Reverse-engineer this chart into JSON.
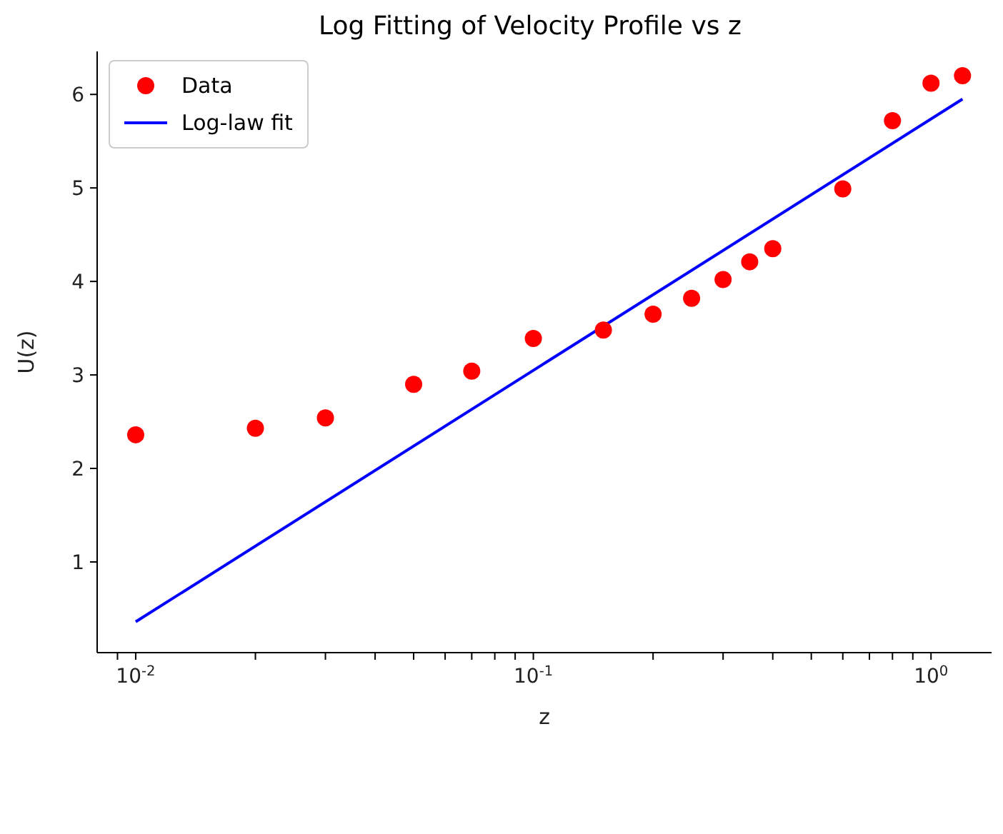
{
  "chart_data": {
    "type": "scatter",
    "title": "Log Fitting of Velocity Profile vs z",
    "xlabel": "z",
    "ylabel": "U(z)",
    "log": "x",
    "legend": "top left",
    "grid": false,
    "marker": "circle",
    "x": [
      0.01,
      0.02,
      0.03,
      0.05,
      0.07,
      0.1,
      0.15,
      0.2,
      0.25,
      0.3,
      0.35,
      0.4,
      0.6,
      0.8,
      1.0,
      1.2
    ],
    "series": [
      {
        "name": "Data",
        "color": "#ff0000",
        "values": [
          2.36,
          2.43,
          2.54,
          2.9,
          3.04,
          3.39,
          3.48,
          3.65,
          3.82,
          4.02,
          4.21,
          4.35,
          4.99,
          5.72,
          6.12,
          6.2
        ]
      },
      {
        "name": "Log-law fit",
        "type": "line",
        "color": "#0000ff",
        "marker": "none",
        "line_style": "solid",
        "x": [
          0.01,
          1.2
        ],
        "values": [
          0.36,
          5.95
        ]
      }
    ],
    "xlim": [
      0.008,
      1.42
    ],
    "ylim": [
      0.03,
      6.46
    ],
    "xticks": [
      {
        "value": 0.009,
        "label": null
      },
      {
        "value": 0.01,
        "label": "10$^{-2}$"
      },
      {
        "value": 0.02,
        "label": null
      },
      {
        "value": 0.03,
        "label": null
      },
      {
        "value": 0.04,
        "label": null
      },
      {
        "value": 0.05,
        "label": null
      },
      {
        "value": 0.06,
        "label": null
      },
      {
        "value": 0.07,
        "label": null
      },
      {
        "value": 0.08,
        "label": null
      },
      {
        "value": 0.09,
        "label": null
      },
      {
        "value": 0.1,
        "label": "10$^{-1}$"
      },
      {
        "value": 0.2,
        "label": null
      },
      {
        "value": 0.3,
        "label": null
      },
      {
        "value": 0.4,
        "label": null
      },
      {
        "value": 0.5,
        "label": null
      },
      {
        "value": 0.6,
        "label": null
      },
      {
        "value": 0.7,
        "label": null
      },
      {
        "value": 0.8,
        "label": null
      },
      {
        "value": 0.9,
        "label": null
      },
      {
        "value": 1,
        "label": "10$^{0}$"
      }
    ],
    "yticks": [
      1,
      2,
      3,
      4,
      5,
      6
    ]
  }
}
